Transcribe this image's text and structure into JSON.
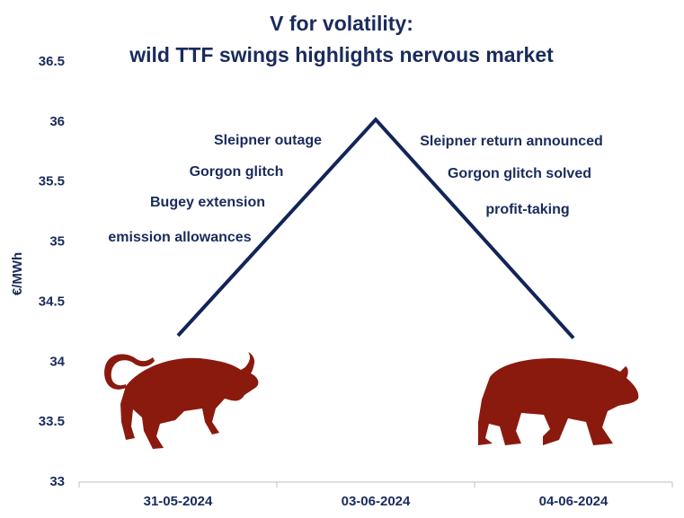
{
  "chart_data": {
    "type": "line",
    "title": [
      "V for volatility:",
      "wild TTF swings highlights nervous market"
    ],
    "y_label": "€/MWh",
    "categories": [
      "31-05-2024",
      "03-06-2024",
      "04-06-2024"
    ],
    "values": [
      34.22,
      36.02,
      34.2
    ],
    "color": "#132459",
    "ylim": [
      33,
      36.5
    ],
    "yticks": [
      33,
      33.5,
      34,
      34.5,
      35,
      35.5,
      36,
      36.5
    ],
    "grid": false,
    "annotations": {
      "rise": [
        "Sleipner outage",
        "Gorgon glitch",
        "Bugey extension",
        "emission allowances"
      ],
      "fall": [
        "Sleipner return announced",
        "Gorgon glitch solved",
        "profit-taking"
      ]
    }
  }
}
